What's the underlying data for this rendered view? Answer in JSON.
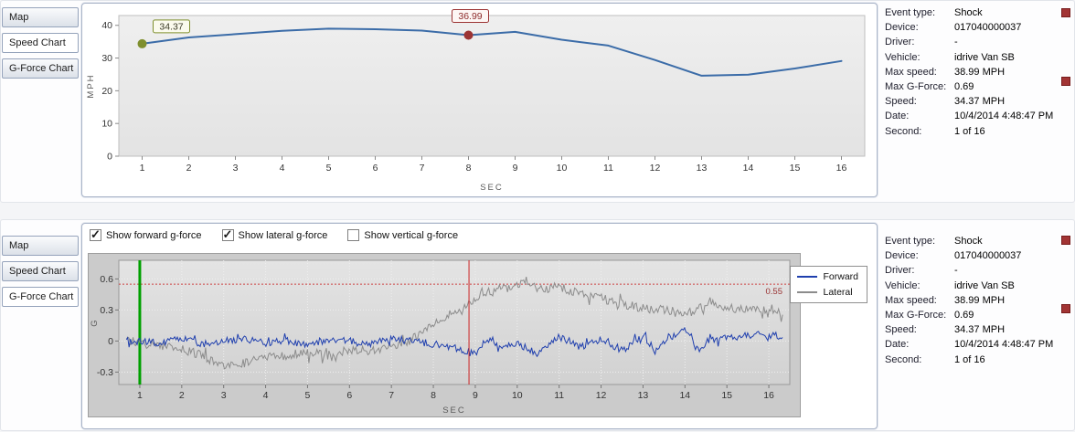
{
  "event_info": {
    "rows": [
      {
        "label": "Event type:",
        "value": "Shock"
      },
      {
        "label": "Device:",
        "value": "017040000037"
      },
      {
        "label": "Driver:",
        "value": "-"
      },
      {
        "label": "Vehicle:",
        "value": "idrive Van SB"
      },
      {
        "label": "Max speed:",
        "value": "38.99 MPH"
      },
      {
        "label": "Max G-Force:",
        "value": "0.69"
      },
      {
        "label": "Speed:",
        "value": "34.37 MPH"
      },
      {
        "label": "Date:",
        "value": "10/4/2014 4:48:47 PM"
      },
      {
        "label": "Second:",
        "value": "1 of 16"
      }
    ]
  },
  "top_panel": {
    "tabs": [
      {
        "label": "Map"
      },
      {
        "label": "Speed Chart"
      },
      {
        "label": "G-Force Chart"
      }
    ],
    "selected_tab": "Speed Chart"
  },
  "bottom_panel": {
    "tabs": [
      {
        "label": "Map"
      },
      {
        "label": "Speed Chart"
      },
      {
        "label": "G-Force Chart"
      }
    ],
    "selected_tab": "G-Force Chart",
    "checkboxes": [
      {
        "label": "Show forward g-force",
        "checked": true
      },
      {
        "label": "Show lateral g-force",
        "checked": true
      },
      {
        "label": "Show vertical g-force",
        "checked": false
      }
    ]
  },
  "chart_data": [
    {
      "id": "speed",
      "type": "line",
      "title": "Speed Chart",
      "xlabel": "SEC",
      "ylabel": "MPH",
      "x": [
        1,
        2,
        3,
        4,
        5,
        6,
        7,
        8,
        9,
        10,
        11,
        12,
        13,
        14,
        15,
        16
      ],
      "values": [
        34.37,
        36.3,
        37.3,
        38.3,
        38.99,
        38.8,
        38.4,
        36.99,
        38.0,
        35.6,
        33.8,
        29.4,
        24.6,
        24.9,
        26.8,
        29.1
      ],
      "x_ticks": [
        1,
        2,
        3,
        4,
        5,
        6,
        7,
        8,
        9,
        10,
        11,
        12,
        13,
        14,
        15,
        16
      ],
      "y_ticks": [
        0,
        10,
        20,
        30,
        40
      ],
      "ylim": [
        0,
        43
      ],
      "xlim": [
        0.5,
        16.5
      ],
      "line_color": "#3b6ca8",
      "annotations": [
        {
          "x": 1,
          "y": 34.37,
          "label": "34.37",
          "color": "#7f8f2e",
          "text_color": "#3c3c28",
          "bg": "#fbfbee"
        },
        {
          "x": 8,
          "y": 36.99,
          "label": "36.99",
          "color": "#9c3434",
          "text_color": "#8c2b2b",
          "bg": "#fdf6f4"
        }
      ]
    },
    {
      "id": "gforce",
      "type": "line",
      "title": "G-Force Chart",
      "xlabel": "SEC",
      "ylabel": "G",
      "x_ticks": [
        1,
        2,
        3,
        4,
        5,
        6,
        7,
        8,
        9,
        10,
        11,
        12,
        13,
        14,
        15,
        16
      ],
      "y_ticks": [
        -0.3,
        0,
        0.3,
        0.6
      ],
      "ylim": [
        -0.42,
        0.78
      ],
      "xlim": [
        0.5,
        16.5
      ],
      "grid": true,
      "threshold": {
        "value": 0.55,
        "label": "0.55",
        "color": "#cc4444",
        "label_color": "#993333"
      },
      "marker_lines": [
        {
          "name": "current-second-marker",
          "x": 1,
          "color": "#00a000",
          "width": 3
        },
        {
          "name": "shock-event-marker",
          "x": 8.85,
          "color": "#cc2222",
          "width": 1
        }
      ],
      "legend": {
        "position": "top-right",
        "items": [
          "Forward",
          "Lateral"
        ]
      },
      "series": [
        {
          "name": "Forward",
          "color": "#1f3fae",
          "noise": 0.035,
          "trend": [
            [
              0.7,
              0.0
            ],
            [
              1.5,
              -0.02
            ],
            [
              2,
              0.02
            ],
            [
              2.5,
              -0.03
            ],
            [
              3,
              0.0
            ],
            [
              3.5,
              0.02
            ],
            [
              4,
              -0.02
            ],
            [
              4.5,
              0.0
            ],
            [
              5,
              -0.04
            ],
            [
              5.5,
              0.02
            ],
            [
              6,
              0.0
            ],
            [
              6.5,
              -0.02
            ],
            [
              7,
              0.02
            ],
            [
              7.5,
              0.0
            ],
            [
              8,
              -0.03
            ],
            [
              8.5,
              -0.06
            ],
            [
              9,
              -0.12
            ],
            [
              9.3,
              0.02
            ],
            [
              9.6,
              -0.04
            ],
            [
              10,
              -0.02
            ],
            [
              10.5,
              -0.13
            ],
            [
              10.8,
              0.0
            ],
            [
              11,
              0.05
            ],
            [
              11.5,
              -0.06
            ],
            [
              12,
              0.03
            ],
            [
              12.5,
              -0.09
            ],
            [
              13,
              0.05
            ],
            [
              13.3,
              -0.1
            ],
            [
              13.6,
              0.02
            ],
            [
              14,
              0.1
            ],
            [
              14.3,
              -0.08
            ],
            [
              14.6,
              0.0
            ],
            [
              15,
              0.03
            ],
            [
              15.5,
              0.06
            ],
            [
              16.3,
              0.05
            ]
          ]
        },
        {
          "name": "Lateral",
          "color": "#8c8c8c",
          "noise": 0.045,
          "trend": [
            [
              0.7,
              0.0
            ],
            [
              1.2,
              -0.03
            ],
            [
              1.6,
              -0.06
            ],
            [
              2,
              -0.08
            ],
            [
              2.4,
              -0.13
            ],
            [
              2.8,
              -0.2
            ],
            [
              3.1,
              -0.25
            ],
            [
              3.4,
              -0.22
            ],
            [
              3.8,
              -0.18
            ],
            [
              4.2,
              -0.15
            ],
            [
              4.6,
              -0.13
            ],
            [
              5,
              -0.12
            ],
            [
              5.5,
              -0.12
            ],
            [
              6,
              -0.1
            ],
            [
              6.5,
              -0.09
            ],
            [
              7,
              -0.06
            ],
            [
              7.4,
              -0.01
            ],
            [
              7.8,
              0.1
            ],
            [
              8.1,
              0.2
            ],
            [
              8.4,
              0.26
            ],
            [
              8.7,
              0.3
            ],
            [
              9,
              0.42
            ],
            [
              9.2,
              0.48
            ],
            [
              9.4,
              0.46
            ],
            [
              9.6,
              0.52
            ],
            [
              9.8,
              0.5
            ],
            [
              10,
              0.55
            ],
            [
              10.2,
              0.6
            ],
            [
              10.4,
              0.52
            ],
            [
              10.7,
              0.5
            ],
            [
              11,
              0.53
            ],
            [
              11.3,
              0.48
            ],
            [
              11.6,
              0.45
            ],
            [
              12,
              0.42
            ],
            [
              12.3,
              0.38
            ],
            [
              12.6,
              0.35
            ],
            [
              13,
              0.32
            ],
            [
              13.5,
              0.3
            ],
            [
              14,
              0.26
            ],
            [
              14.3,
              0.32
            ],
            [
              14.6,
              0.38
            ],
            [
              14.9,
              0.34
            ],
            [
              15.2,
              0.32
            ],
            [
              15.6,
              0.3
            ],
            [
              16.3,
              0.28
            ]
          ]
        }
      ]
    }
  ]
}
